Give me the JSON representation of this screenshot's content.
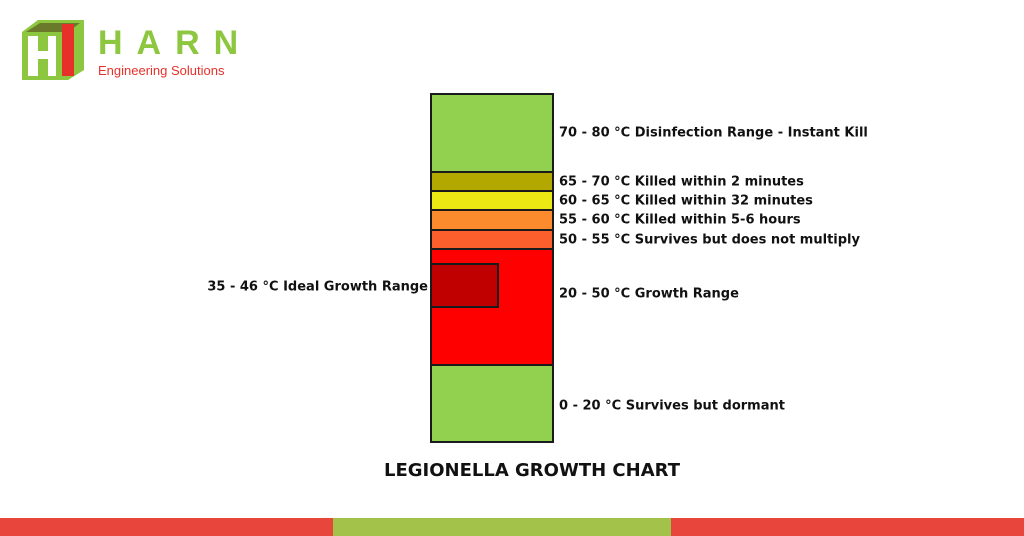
{
  "logo": {
    "name": "HARN",
    "tagline": "Engineering Solutions",
    "green": "#8dc63f",
    "red": "#e8302a"
  },
  "bands": [
    {
      "range": "70 - 80",
      "label": "Disinfection Range - Instant Kill",
      "color": "#92d050"
    },
    {
      "range": "65 - 70",
      "label": "Killed within 2 minutes",
      "color": "#b2a800"
    },
    {
      "range": "60 - 65",
      "label": "Killed within 32 minutes",
      "color": "#ece813"
    },
    {
      "range": "55 - 60",
      "label": "Killed within 5-6 hours",
      "color": "#fb8b2c"
    },
    {
      "range": "50 - 55",
      "label": "Survives but does not multiply",
      "color": "#fd5f2c"
    },
    {
      "range": "20 - 50",
      "label": "Growth Range",
      "color": "#ff0000"
    },
    {
      "range": "0 - 20",
      "label": "Survives but dormant",
      "color": "#92d050"
    }
  ],
  "ideal": {
    "range": "35 - 46",
    "label": "Ideal Growth Range",
    "color": "#c00000"
  },
  "unit": "°C",
  "title": "LEGIONELLA GROWTH CHART"
}
